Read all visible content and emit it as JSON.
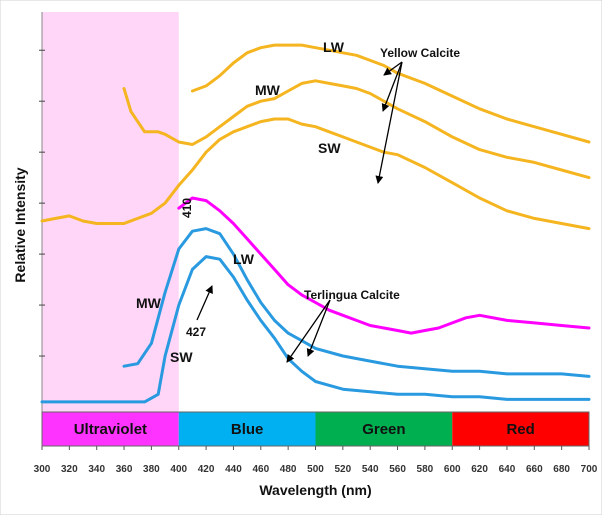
{
  "chart_data": {
    "type": "line",
    "xlabel": "Wavelength (nm)",
    "ylabel": "Relative Intensity",
    "xlim": [
      300,
      700
    ],
    "x_ticks": [
      300,
      320,
      340,
      360,
      380,
      400,
      420,
      440,
      460,
      480,
      500,
      520,
      540,
      560,
      580,
      600,
      620,
      640,
      660,
      680,
      700
    ],
    "y_ticks_labeled": false,
    "grid": false,
    "uv_region": {
      "from": 300,
      "to": 400,
      "color": "#ffd6f7"
    },
    "spectrum_bands": [
      {
        "label": "Ultraviolet",
        "from": 300,
        "to": 400,
        "color": "#ff33ff"
      },
      {
        "label": "Blue",
        "from": 400,
        "to": 500,
        "color": "#00b0f0"
      },
      {
        "label": "Green",
        "from": 500,
        "to": 600,
        "color": "#00b050"
      },
      {
        "label": "Red",
        "from": 600,
        "to": 700,
        "color": "#ff0000"
      }
    ],
    "series": [
      {
        "group": "Yellow Calcite",
        "excitation": "LW",
        "color": "#f5b520",
        "points": [
          [
            410,
            1.24
          ],
          [
            420,
            1.26
          ],
          [
            430,
            1.3
          ],
          [
            440,
            1.35
          ],
          [
            450,
            1.39
          ],
          [
            460,
            1.41
          ],
          [
            470,
            1.42
          ],
          [
            480,
            1.42
          ],
          [
            490,
            1.42
          ],
          [
            500,
            1.41
          ],
          [
            510,
            1.4
          ],
          [
            520,
            1.39
          ],
          [
            530,
            1.38
          ],
          [
            540,
            1.36
          ],
          [
            550,
            1.34
          ],
          [
            560,
            1.31
          ],
          [
            580,
            1.27
          ],
          [
            600,
            1.22
          ],
          [
            620,
            1.17
          ],
          [
            640,
            1.13
          ],
          [
            660,
            1.1
          ],
          [
            680,
            1.07
          ],
          [
            700,
            1.04
          ]
        ]
      },
      {
        "group": "Yellow Calcite",
        "excitation": "MW",
        "color": "#f5b520",
        "points": [
          [
            360,
            1.25
          ],
          [
            365,
            1.16
          ],
          [
            370,
            1.12
          ],
          [
            375,
            1.08
          ],
          [
            380,
            1.08
          ],
          [
            385,
            1.08
          ],
          [
            390,
            1.07
          ],
          [
            400,
            1.04
          ],
          [
            410,
            1.03
          ],
          [
            420,
            1.06
          ],
          [
            430,
            1.1
          ],
          [
            440,
            1.14
          ],
          [
            450,
            1.18
          ],
          [
            460,
            1.2
          ],
          [
            470,
            1.21
          ],
          [
            480,
            1.24
          ],
          [
            490,
            1.27
          ],
          [
            500,
            1.28
          ],
          [
            510,
            1.27
          ],
          [
            520,
            1.26
          ],
          [
            530,
            1.25
          ],
          [
            540,
            1.23
          ],
          [
            560,
            1.17
          ],
          [
            580,
            1.12
          ],
          [
            600,
            1.06
          ],
          [
            620,
            1.01
          ],
          [
            640,
            0.98
          ],
          [
            660,
            0.96
          ],
          [
            680,
            0.93
          ],
          [
            700,
            0.9
          ]
        ]
      },
      {
        "group": "Yellow Calcite",
        "excitation": "SW",
        "color": "#f5b520",
        "points": [
          [
            300,
            0.73
          ],
          [
            310,
            0.74
          ],
          [
            320,
            0.75
          ],
          [
            330,
            0.73
          ],
          [
            340,
            0.72
          ],
          [
            350,
            0.72
          ],
          [
            360,
            0.72
          ],
          [
            370,
            0.74
          ],
          [
            380,
            0.76
          ],
          [
            390,
            0.8
          ],
          [
            400,
            0.87
          ],
          [
            410,
            0.93
          ],
          [
            420,
            1.0
          ],
          [
            430,
            1.05
          ],
          [
            440,
            1.08
          ],
          [
            450,
            1.1
          ],
          [
            460,
            1.12
          ],
          [
            470,
            1.13
          ],
          [
            480,
            1.13
          ],
          [
            490,
            1.11
          ],
          [
            500,
            1.1
          ],
          [
            510,
            1.08
          ],
          [
            520,
            1.06
          ],
          [
            530,
            1.04
          ],
          [
            540,
            1.02
          ],
          [
            550,
            1.0
          ],
          [
            560,
            0.99
          ],
          [
            580,
            0.94
          ],
          [
            600,
            0.88
          ],
          [
            620,
            0.82
          ],
          [
            640,
            0.77
          ],
          [
            660,
            0.74
          ],
          [
            680,
            0.72
          ],
          [
            700,
            0.7
          ]
        ]
      },
      {
        "group": "Terlingua Calcite",
        "excitation": "LW",
        "color": "#ff00ff",
        "points": [
          [
            400,
            0.78
          ],
          [
            405,
            0.8
          ],
          [
            410,
            0.82
          ],
          [
            420,
            0.81
          ],
          [
            430,
            0.77
          ],
          [
            440,
            0.72
          ],
          [
            450,
            0.66
          ],
          [
            460,
            0.6
          ],
          [
            470,
            0.54
          ],
          [
            480,
            0.48
          ],
          [
            490,
            0.44
          ],
          [
            500,
            0.41
          ],
          [
            510,
            0.38
          ],
          [
            520,
            0.36
          ],
          [
            530,
            0.34
          ],
          [
            540,
            0.32
          ],
          [
            550,
            0.31
          ],
          [
            560,
            0.3
          ],
          [
            570,
            0.29
          ],
          [
            580,
            0.3
          ],
          [
            590,
            0.31
          ],
          [
            600,
            0.33
          ],
          [
            610,
            0.35
          ],
          [
            620,
            0.36
          ],
          [
            640,
            0.34
          ],
          [
            660,
            0.33
          ],
          [
            680,
            0.32
          ],
          [
            700,
            0.31
          ]
        ]
      },
      {
        "group": "Terlingua Calcite",
        "excitation": "MW",
        "color": "#2a9ae0",
        "points": [
          [
            360,
            0.16
          ],
          [
            370,
            0.17
          ],
          [
            380,
            0.25
          ],
          [
            390,
            0.45
          ],
          [
            400,
            0.62
          ],
          [
            410,
            0.69
          ],
          [
            420,
            0.7
          ],
          [
            430,
            0.68
          ],
          [
            440,
            0.6
          ],
          [
            450,
            0.5
          ],
          [
            460,
            0.41
          ],
          [
            470,
            0.34
          ],
          [
            480,
            0.29
          ],
          [
            490,
            0.26
          ],
          [
            500,
            0.23
          ],
          [
            520,
            0.2
          ],
          [
            540,
            0.18
          ],
          [
            560,
            0.16
          ],
          [
            580,
            0.15
          ],
          [
            600,
            0.14
          ],
          [
            620,
            0.14
          ],
          [
            640,
            0.13
          ],
          [
            660,
            0.13
          ],
          [
            680,
            0.13
          ],
          [
            700,
            0.12
          ]
        ]
      },
      {
        "group": "Terlingua Calcite",
        "excitation": "SW",
        "color": "#2a9ae0",
        "points": [
          [
            300,
            0.02
          ],
          [
            320,
            0.02
          ],
          [
            340,
            0.02
          ],
          [
            360,
            0.02
          ],
          [
            375,
            0.02
          ],
          [
            385,
            0.05
          ],
          [
            390,
            0.2
          ],
          [
            400,
            0.4
          ],
          [
            410,
            0.54
          ],
          [
            420,
            0.59
          ],
          [
            430,
            0.58
          ],
          [
            440,
            0.51
          ],
          [
            450,
            0.42
          ],
          [
            460,
            0.34
          ],
          [
            470,
            0.27
          ],
          [
            480,
            0.19
          ],
          [
            490,
            0.14
          ],
          [
            500,
            0.1
          ],
          [
            520,
            0.07
          ],
          [
            540,
            0.06
          ],
          [
            560,
            0.05
          ],
          [
            580,
            0.05
          ],
          [
            600,
            0.04
          ],
          [
            620,
            0.04
          ],
          [
            640,
            0.03
          ],
          [
            660,
            0.03
          ],
          [
            680,
            0.03
          ],
          [
            700,
            0.03
          ]
        ]
      }
    ],
    "annotations": [
      {
        "text": "LW"
      },
      {
        "text": "MW"
      },
      {
        "text": "SW"
      },
      {
        "text": "Yellow Calcite"
      },
      {
        "text": "410"
      },
      {
        "text": "LW"
      },
      {
        "text": "MW"
      },
      {
        "text": "Terlingua Calcite"
      },
      {
        "text": "427"
      },
      {
        "text": "SW"
      }
    ]
  }
}
